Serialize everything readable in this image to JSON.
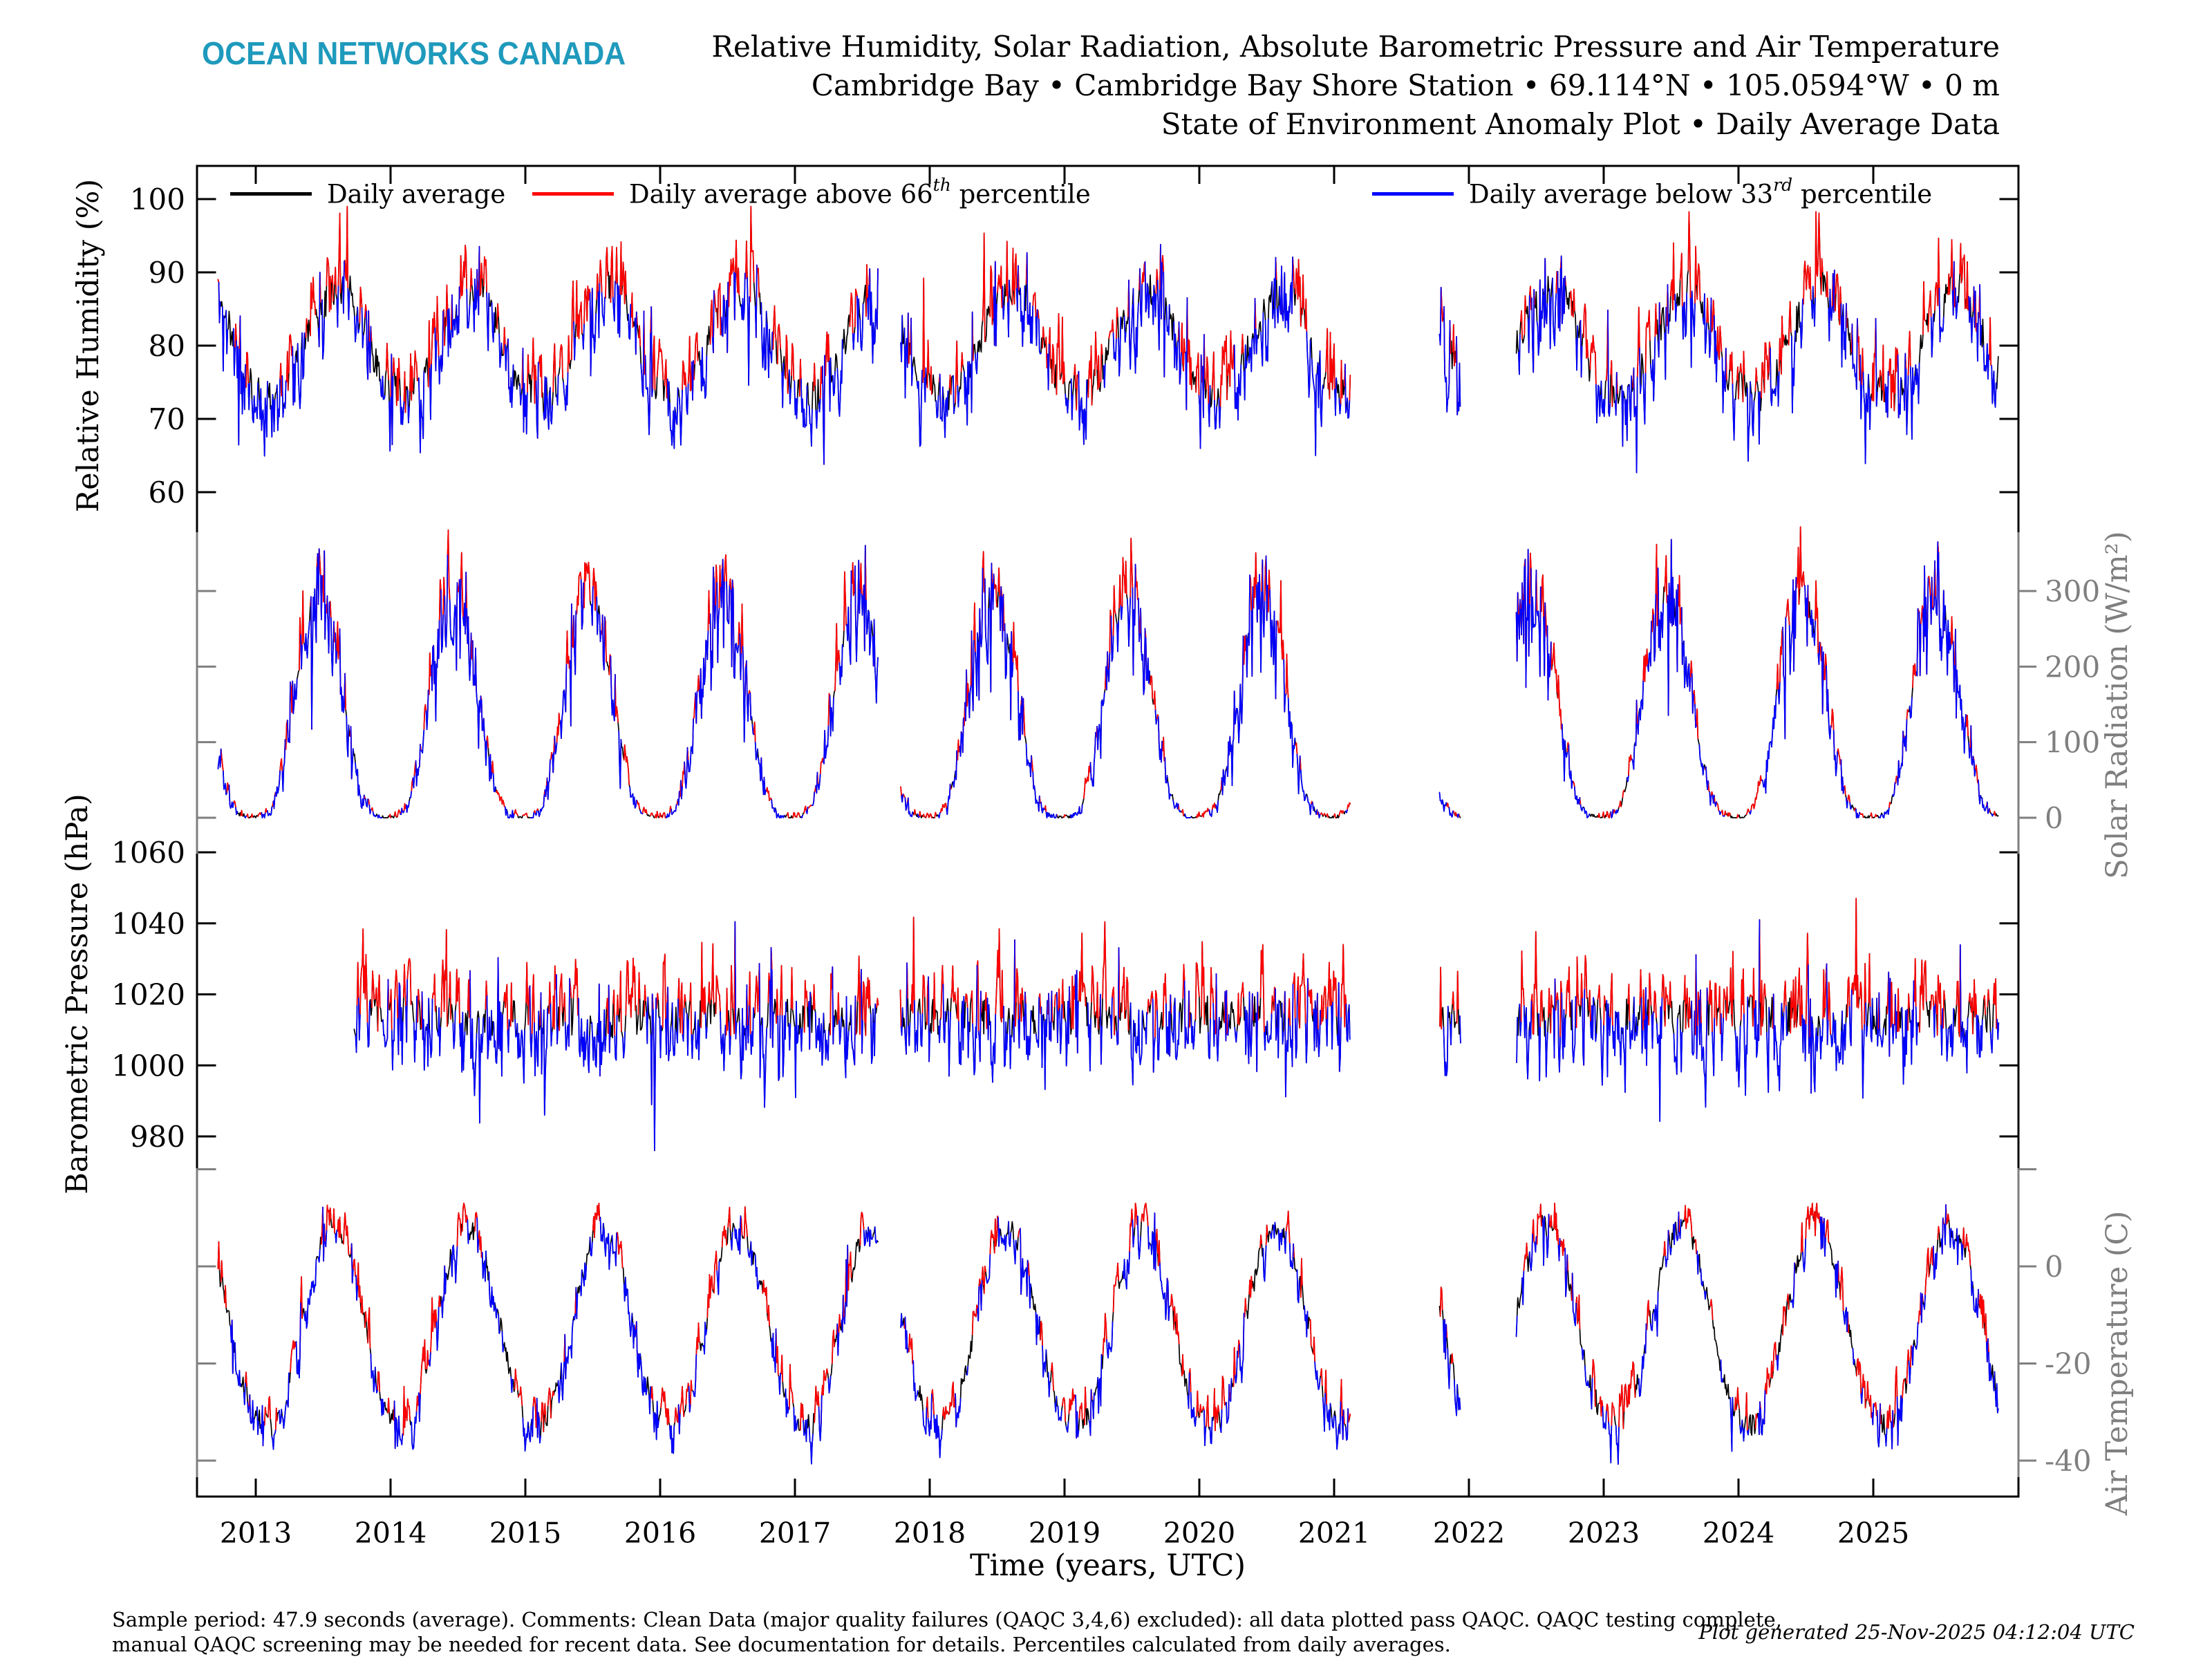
{
  "header": {
    "logo": "OCEAN NETWORKS CANADA",
    "title_line1": "Relative Humidity, Solar Radiation, Absolute Barometric Pressure and Air Temperature",
    "title_line2": "Cambridge Bay • Cambridge Bay Shore Station • 69.114°N • 105.0594°W • 0 m",
    "title_line3": "State of Environment Anomaly Plot • Daily Average Data"
  },
  "legend": {
    "items": [
      {
        "prefix": "Daily average",
        "sup": "",
        "suffix": "",
        "color": "#000000"
      },
      {
        "prefix": "Daily average above 66",
        "sup": "th",
        "suffix": " percentile",
        "color": "#ff0000"
      },
      {
        "prefix": "Daily average below 33",
        "sup": "rd",
        "suffix": " percentile",
        "color": "#0000ff"
      }
    ]
  },
  "footer": {
    "line1": "Sample period: 47.9 seconds (average). Comments: Clean Data (major quality failures (QAQC 3,4,6) excluded): all data plotted pass QAQC. QAQC testing complete,",
    "line2": "manual QAQC screening may be needed for recent data. See documentation for details. Percentiles calculated from daily averages.",
    "generated": "Plot generated 25-Nov-2025 04:12:04 UTC"
  },
  "chart_data": {
    "type": "line",
    "title": "Relative Humidity, Solar Radiation, Absolute Barometric Pressure and Air Temperature",
    "subtitle": "Cambridge Bay • Cambridge Bay Shore Station • 69.114°N • 105.0594°W • 0 m • State of Environment Anomaly Plot • Daily Average Data",
    "series_colors": {
      "daily_average": "#000000",
      "above_66th_percentile": "#ff0000",
      "below_33rd_percentile": "#0000ff"
    },
    "percentiles": {
      "above": 66,
      "below": 33
    },
    "x_axis": {
      "label": "Time (years, UTC)",
      "tick_labels": [
        "2013",
        "2014",
        "2015",
        "2016",
        "2017",
        "2018",
        "2019",
        "2020",
        "2021",
        "2022",
        "2023",
        "2024",
        "2025"
      ],
      "tick_values": [
        2013,
        2014,
        2015,
        2016,
        2017,
        2018,
        2019,
        2020,
        2021,
        2022,
        2023,
        2024,
        2025
      ],
      "range": [
        2012.56,
        2026.08
      ]
    },
    "time": {
      "start": 2012.72,
      "end": 2025.93,
      "step_days": 2,
      "gaps": [
        [
          2017.62,
          2017.78
        ],
        [
          2021.12,
          2021.78
        ],
        [
          2021.94,
          2022.35
        ]
      ]
    },
    "panels": [
      {
        "id": "humidity",
        "ylabel": "Relative Humidity (%)",
        "axis_side": "left",
        "axis_color": "#000000",
        "tick_values": [
          100,
          90,
          80,
          70,
          60
        ],
        "tick_labels": [
          "100",
          "90",
          "80",
          "70",
          "60"
        ],
        "ylim": [
          60,
          100
        ],
        "data_range": [
          60,
          99
        ],
        "pattern": {
          "start": 2012.72,
          "seed": 11,
          "monthly": [
            74,
            73,
            74,
            77,
            81,
            84,
            86.5,
            88,
            87,
            83,
            78,
            75
          ],
          "ar": 0.42,
          "sigma": 3.2,
          "threshold": 2.4,
          "clip": [
            57,
            99
          ],
          "spike_p": 0.05,
          "spike_amp": 7,
          "spike_up_bias": 0.35
        }
      },
      {
        "id": "solar",
        "ylabel": "Solar Radiation (W/m²)",
        "axis_side": "right",
        "axis_color": "#7f7f7f",
        "tick_values": [
          300,
          200,
          100,
          0
        ],
        "tick_labels": [
          "300",
          "200",
          "100",
          "0"
        ],
        "ylim": [
          0,
          300
        ],
        "data_range": [
          0,
          380
        ],
        "pattern": {
          "start": 2012.72,
          "seed": 23,
          "monthly": [
            2,
            14,
            75,
            170,
            255,
            303,
            272,
            195,
            100,
            30,
            5,
            1
          ],
          "ar": 0.3,
          "sigma": 3,
          "sigma_rel": 0.12,
          "threshold": 2,
          "threshold_rel": 0.05,
          "clip": [
            0,
            385
          ],
          "spike_p": 0.1,
          "spike_rel": 0.28,
          "spike_up_bias": 0.25
        }
      },
      {
        "id": "pressure",
        "ylabel": "Barometric Pressure (hPa)",
        "axis_side": "left",
        "axis_color": "#000000",
        "tick_values": [
          1060,
          1040,
          1020,
          1000,
          980
        ],
        "tick_labels": [
          "1060",
          "1040",
          "1020",
          "1000",
          "980"
        ],
        "ylim": [
          980,
          1060
        ],
        "data_range": [
          978,
          1055
        ],
        "pattern": {
          "start": 2013.73,
          "seed": 7,
          "monthly": [
            1014,
            1014,
            1014,
            1014,
            1014,
            1014,
            1013,
            1013,
            1013,
            1014,
            1014,
            1014
          ],
          "ar": 0.45,
          "sigma": 7.5,
          "threshold": 5.5,
          "clip": [
            976,
            1056
          ],
          "spike_p": 0.06,
          "spike_amp": 14,
          "spike_up_bias": 0.5
        }
      },
      {
        "id": "temperature",
        "ylabel": "Air Temperature (C)",
        "axis_side": "right",
        "axis_color": "#7f7f7f",
        "tick_values": [
          20,
          0,
          -20,
          -40
        ],
        "tick_labels": [
          "",
          "0",
          "-20",
          "-40"
        ],
        "ylim": [
          -40,
          0
        ],
        "data_range": [
          -40,
          12
        ],
        "pattern": {
          "start": 2012.72,
          "seed": 5,
          "monthly": [
            -32,
            -33,
            -28.5,
            -18,
            -7,
            3,
            8.5,
            7,
            1,
            -9,
            -21,
            -29
          ],
          "ar": 0.5,
          "sigma": 2.8,
          "threshold": 2.2,
          "clip": [
            -41,
            13
          ],
          "spike_p": 0.05,
          "spike_amp": 5,
          "spike_up_bias": 0.5
        }
      }
    ]
  }
}
